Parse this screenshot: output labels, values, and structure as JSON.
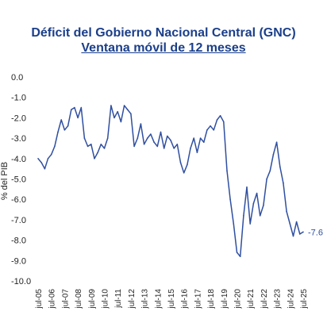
{
  "chart_data": {
    "type": "line",
    "title": "Déficit del Gobierno Nacional Central (GNC)",
    "subtitle": "Ventana móvil de 12 meses",
    "ylabel": "% del PIB",
    "xlabel": "",
    "ylim": [
      -10.0,
      0.0
    ],
    "yticks": [
      "0.0",
      "-1.0",
      "-2.0",
      "-3.0",
      "-4.0",
      "-5.0",
      "-6.0",
      "-7.0",
      "-8.0",
      "-9.0",
      "-10.0"
    ],
    "xticks": [
      "jul-05",
      "jul-06",
      "jul-07",
      "jul-08",
      "jul-09",
      "jul-10",
      "jul-11",
      "jul-12",
      "jul-13",
      "jul-14",
      "jul-15",
      "jul-16",
      "jul-17",
      "jul-18",
      "jul-19",
      "jul-20",
      "jul-21",
      "jul-22",
      "jul-23",
      "jul-24",
      "jul-25"
    ],
    "grid": false,
    "line_color": "#2f4fa0",
    "end_label": "-7.6",
    "series": [
      {
        "x": [
          "jul-05",
          "oct-05",
          "ene-06",
          "abr-06",
          "jul-06",
          "oct-06",
          "ene-07",
          "abr-07",
          "jul-07",
          "oct-07",
          "ene-08",
          "abr-08",
          "jul-08",
          "oct-08",
          "ene-09",
          "abr-09",
          "jul-09",
          "oct-09",
          "ene-10",
          "abr-10",
          "jul-10",
          "oct-10",
          "ene-11",
          "abr-11",
          "jul-11",
          "oct-11",
          "ene-12",
          "abr-12",
          "jul-12",
          "oct-12",
          "ene-13",
          "abr-13",
          "jul-13",
          "oct-13",
          "ene-14",
          "abr-14",
          "jul-14",
          "oct-14",
          "ene-15",
          "abr-15",
          "jul-15",
          "oct-15",
          "ene-16",
          "abr-16",
          "jul-16",
          "oct-16",
          "ene-17",
          "abr-17",
          "jul-17",
          "oct-17",
          "ene-18",
          "abr-18",
          "jul-18",
          "oct-18",
          "ene-19",
          "abr-19",
          "jul-19",
          "oct-19",
          "ene-20",
          "abr-20",
          "jul-20",
          "oct-20",
          "ene-21",
          "abr-21",
          "jul-21",
          "oct-21",
          "ene-22",
          "abr-22",
          "jul-22",
          "oct-22",
          "ene-23",
          "abr-23",
          "jul-23",
          "oct-23",
          "ene-24",
          "abr-24",
          "jul-24",
          "oct-24",
          "ene-25",
          "abr-25",
          "jul-25"
        ],
        "values": [
          -4.0,
          -4.2,
          -4.5,
          -4.0,
          -3.8,
          -3.4,
          -2.7,
          -2.1,
          -2.6,
          -2.4,
          -1.6,
          -1.5,
          -2.0,
          -1.5,
          -3.0,
          -3.4,
          -3.3,
          -4.0,
          -3.7,
          -3.3,
          -3.5,
          -3.0,
          -1.4,
          -2.0,
          -1.7,
          -2.2,
          -1.4,
          -1.6,
          -1.8,
          -3.4,
          -3.0,
          -2.3,
          -3.3,
          -3.0,
          -2.8,
          -3.2,
          -3.4,
          -2.7,
          -3.5,
          -2.9,
          -3.1,
          -3.5,
          -3.3,
          -4.2,
          -4.7,
          -4.3,
          -3.5,
          -3.0,
          -3.7,
          -3.0,
          -3.2,
          -2.6,
          -2.4,
          -2.6,
          -2.1,
          -1.9,
          -2.2,
          -4.6,
          -6.0,
          -7.2,
          -8.6,
          -8.8,
          -6.8,
          -5.4,
          -7.2,
          -6.2,
          -5.7,
          -6.8,
          -6.3,
          -5.0,
          -4.6,
          -3.8,
          -3.2,
          -4.4,
          -5.2,
          -6.6,
          -7.2,
          -7.8,
          -7.1,
          -7.7,
          -7.6
        ]
      }
    ]
  }
}
